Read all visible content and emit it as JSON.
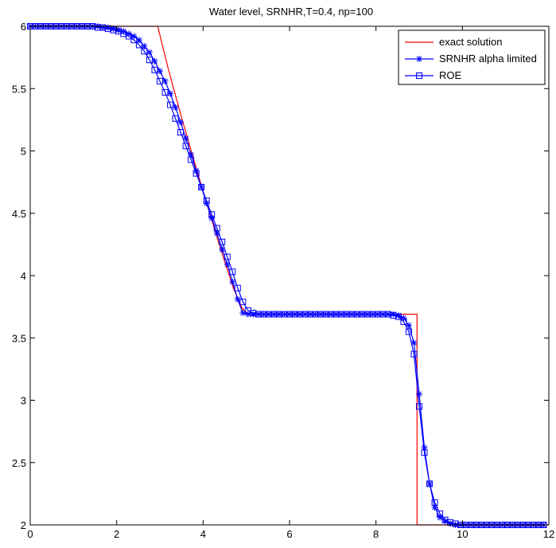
{
  "chart_data": {
    "type": "line",
    "title": "Water level, SRNHR,T=0.4, np=100",
    "xlabel": "",
    "ylabel": "",
    "xlim": [
      0,
      12
    ],
    "ylim": [
      2,
      6
    ],
    "x_ticks": [
      0,
      2,
      4,
      6,
      8,
      10,
      12
    ],
    "y_ticks": [
      2,
      2.5,
      3,
      3.5,
      4,
      4.5,
      5,
      5.5,
      6
    ],
    "x_tick_labels": [
      "0",
      "2",
      "4",
      "6",
      "8",
      "10",
      "12"
    ],
    "y_tick_labels": [
      "2",
      "2.5",
      "3",
      "3.5",
      "4",
      "4.5",
      "5",
      "5.5",
      "6"
    ],
    "grid": false,
    "legend_position": "top-right",
    "series": [
      {
        "name": "exact solution",
        "color": "#ff0000",
        "marker": "none",
        "x": [
          0,
          2.95,
          3.2,
          3.5,
          3.8,
          4.1,
          4.4,
          4.7,
          4.9,
          5.05,
          5.2,
          8.95,
          8.95,
          12
        ],
        "y": [
          6,
          6,
          5.65,
          5.27,
          4.91,
          4.56,
          4.22,
          3.9,
          3.74,
          3.69,
          3.69,
          3.69,
          2,
          2
        ]
      },
      {
        "name": "SRNHR alpha limited",
        "color": "#0000ff",
        "marker": "star",
        "x": [
          0.0,
          0.12,
          0.24,
          0.36,
          0.48,
          0.6,
          0.72,
          0.84,
          0.96,
          1.08,
          1.2,
          1.32,
          1.44,
          1.56,
          1.68,
          1.8,
          1.92,
          2.04,
          2.16,
          2.28,
          2.4,
          2.52,
          2.64,
          2.76,
          2.88,
          3.0,
          3.12,
          3.24,
          3.36,
          3.48,
          3.6,
          3.72,
          3.84,
          3.96,
          4.08,
          4.2,
          4.32,
          4.44,
          4.56,
          4.68,
          4.8,
          4.92,
          5.04,
          5.16,
          5.28,
          5.4,
          5.52,
          5.64,
          5.76,
          5.88,
          6.0,
          6.12,
          6.24,
          6.36,
          6.48,
          6.6,
          6.72,
          6.84,
          6.96,
          7.08,
          7.2,
          7.32,
          7.44,
          7.56,
          7.68,
          7.8,
          7.92,
          8.04,
          8.16,
          8.28,
          8.4,
          8.52,
          8.64,
          8.76,
          8.88,
          9.0,
          9.12,
          9.24,
          9.36,
          9.48,
          9.6,
          9.72,
          9.84,
          9.96,
          10.08,
          10.2,
          10.32,
          10.44,
          10.56,
          10.68,
          10.8,
          10.92,
          11.04,
          11.16,
          11.28,
          11.4,
          11.52,
          11.64,
          11.76,
          11.88
        ],
        "y": [
          6.0,
          6.0,
          6.0,
          6.0,
          6.0,
          6.0,
          6.0,
          6.0,
          6.0,
          6.0,
          6.0,
          6.0,
          6.0,
          6.0,
          5.99,
          5.99,
          5.98,
          5.97,
          5.96,
          5.94,
          5.92,
          5.89,
          5.84,
          5.79,
          5.72,
          5.64,
          5.56,
          5.46,
          5.35,
          5.23,
          5.1,
          4.97,
          4.84,
          4.71,
          4.58,
          4.46,
          4.34,
          4.21,
          4.09,
          3.95,
          3.81,
          3.7,
          3.69,
          3.69,
          3.69,
          3.69,
          3.69,
          3.69,
          3.69,
          3.69,
          3.69,
          3.69,
          3.69,
          3.69,
          3.69,
          3.69,
          3.69,
          3.69,
          3.69,
          3.69,
          3.69,
          3.69,
          3.69,
          3.69,
          3.69,
          3.69,
          3.69,
          3.69,
          3.69,
          3.69,
          3.69,
          3.68,
          3.66,
          3.6,
          3.46,
          3.05,
          2.62,
          2.33,
          2.14,
          2.06,
          2.03,
          2.01,
          2.0,
          2.0,
          2.0,
          2.0,
          2.0,
          2.0,
          2.0,
          2.0,
          2.0,
          2.0,
          2.0,
          2.0,
          2.0,
          2.0,
          2.0,
          2.0,
          2.0,
          2.0
        ]
      },
      {
        "name": "ROE",
        "color": "#0000ff",
        "marker": "square",
        "x": [
          0.0,
          0.12,
          0.24,
          0.36,
          0.48,
          0.6,
          0.72,
          0.84,
          0.96,
          1.08,
          1.2,
          1.32,
          1.44,
          1.56,
          1.68,
          1.8,
          1.92,
          2.04,
          2.16,
          2.28,
          2.4,
          2.52,
          2.64,
          2.76,
          2.88,
          3.0,
          3.12,
          3.24,
          3.36,
          3.48,
          3.6,
          3.72,
          3.84,
          3.96,
          4.08,
          4.2,
          4.32,
          4.44,
          4.56,
          4.68,
          4.8,
          4.92,
          5.04,
          5.16,
          5.28,
          5.4,
          5.52,
          5.64,
          5.76,
          5.88,
          6.0,
          6.12,
          6.24,
          6.36,
          6.48,
          6.6,
          6.72,
          6.84,
          6.96,
          7.08,
          7.2,
          7.32,
          7.44,
          7.56,
          7.68,
          7.8,
          7.92,
          8.04,
          8.16,
          8.28,
          8.4,
          8.52,
          8.64,
          8.76,
          8.88,
          9.0,
          9.12,
          9.24,
          9.36,
          9.48,
          9.6,
          9.72,
          9.84,
          9.96,
          10.08,
          10.2,
          10.32,
          10.44,
          10.56,
          10.68,
          10.8,
          10.92,
          11.04,
          11.16,
          11.28,
          11.4,
          11.52,
          11.64,
          11.76,
          11.88
        ],
        "y": [
          6.0,
          6.0,
          6.0,
          6.0,
          6.0,
          6.0,
          6.0,
          6.0,
          6.0,
          6.0,
          6.0,
          6.0,
          6.0,
          5.99,
          5.99,
          5.98,
          5.97,
          5.96,
          5.94,
          5.92,
          5.89,
          5.85,
          5.8,
          5.73,
          5.65,
          5.56,
          5.47,
          5.37,
          5.26,
          5.15,
          5.04,
          4.93,
          4.82,
          4.71,
          4.6,
          4.49,
          4.38,
          4.27,
          4.15,
          4.03,
          3.9,
          3.79,
          3.72,
          3.7,
          3.69,
          3.69,
          3.69,
          3.69,
          3.69,
          3.69,
          3.69,
          3.69,
          3.69,
          3.69,
          3.69,
          3.69,
          3.69,
          3.69,
          3.69,
          3.69,
          3.69,
          3.69,
          3.69,
          3.69,
          3.69,
          3.69,
          3.69,
          3.69,
          3.69,
          3.69,
          3.68,
          3.67,
          3.63,
          3.55,
          3.37,
          2.95,
          2.58,
          2.33,
          2.18,
          2.09,
          2.04,
          2.02,
          2.01,
          2.0,
          2.0,
          2.0,
          2.0,
          2.0,
          2.0,
          2.0,
          2.0,
          2.0,
          2.0,
          2.0,
          2.0,
          2.0,
          2.0,
          2.0,
          2.0,
          2.0
        ]
      }
    ]
  }
}
